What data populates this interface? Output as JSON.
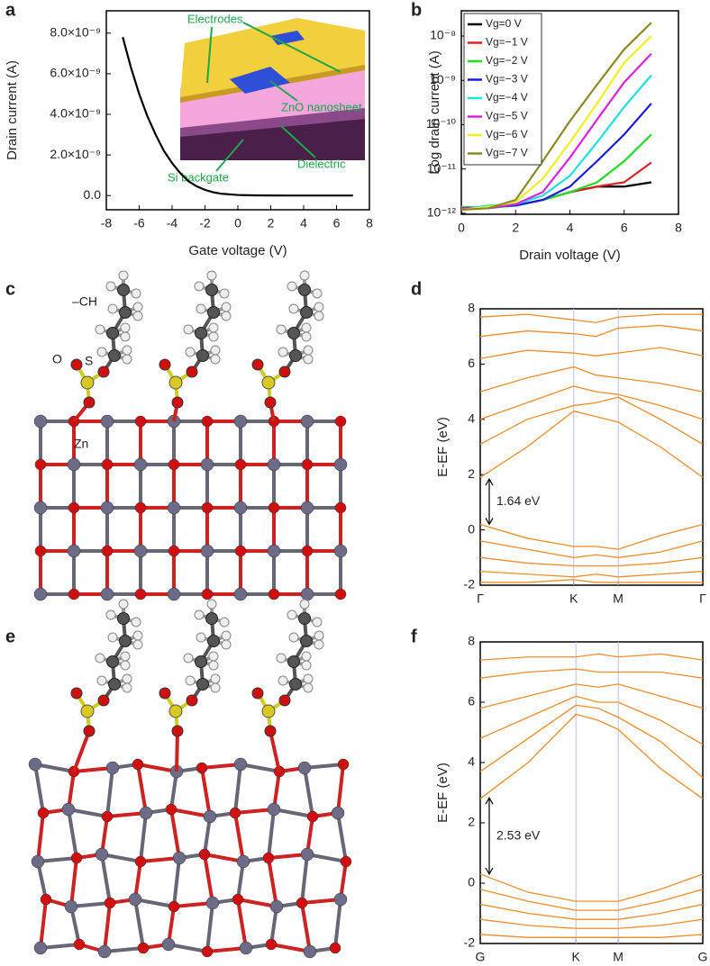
{
  "panels": [
    "a",
    "b",
    "c",
    "d",
    "e",
    "f"
  ],
  "structure_c": {
    "labels": [
      "–CH",
      "O",
      "S",
      "Zn"
    ]
  },
  "chart_data": [
    {
      "type": "line",
      "xlabel": "Gate voltage (V)",
      "ylabel": "Drain current (A)",
      "x": [
        -7,
        -6.5,
        -6,
        -5.5,
        -5,
        -4.5,
        -4,
        -3.5,
        -3,
        -2.5,
        -2,
        -1.5,
        -1,
        0,
        1,
        2,
        3,
        4,
        5,
        6,
        7
      ],
      "values": [
        7.8e-09,
        6.3e-09,
        5e-09,
        3.9e-09,
        3e-09,
        2.2e-09,
        1.6e-09,
        1.1e-09,
        7e-10,
        4.5e-10,
        2.8e-10,
        1.6e-10,
        9e-11,
        3e-11,
        1e-11,
        5e-12,
        0,
        0,
        0,
        0,
        0
      ],
      "color": "#000000",
      "xlim": [
        -8,
        8
      ],
      "xticks": [
        -8,
        -6,
        -4,
        -2,
        0,
        2,
        4,
        6,
        8
      ],
      "ylim": [
        -7e-10,
        9.1e-09
      ],
      "yticks": [
        {
          "value": 0,
          "label": "0.0"
        },
        {
          "value": 2e-09,
          "label": "2.0×10⁻⁹"
        },
        {
          "value": 4e-09,
          "label": "4.0×10⁻⁹"
        },
        {
          "value": 6e-09,
          "label": "6.0×10⁻⁹"
        },
        {
          "value": 8e-09,
          "label": "8.0×10⁻⁹"
        }
      ],
      "annotations": [
        "Electrodes",
        "ZnO nanosheet",
        "Si backgate",
        "Dielectric"
      ]
    },
    {
      "type": "line",
      "xlabel": "Drain voltage (V)",
      "ylabel": "Log drain current (A)",
      "ylog": true,
      "legend": "upper-left",
      "x": [
        0,
        1,
        2,
        3,
        4,
        5,
        6,
        7
      ],
      "series": [
        {
          "name": "Vg=0 V",
          "color": "#000000",
          "values": [
            1.3e-12,
            1.4e-12,
            1.5e-12,
            2e-12,
            3e-12,
            4e-12,
            4e-12,
            5e-12
          ]
        },
        {
          "name": "Vg=−1 V",
          "color": "#e02020",
          "values": [
            1.3e-12,
            1.4e-12,
            1.5e-12,
            2e-12,
            3e-12,
            4e-12,
            5e-12,
            1.4e-11
          ]
        },
        {
          "name": "Vg=−2 V",
          "color": "#22dd22",
          "values": [
            1.4e-12,
            1.3e-12,
            1.5e-12,
            2e-12,
            3e-12,
            5e-12,
            1.5e-11,
            6e-11
          ]
        },
        {
          "name": "Vg=−3 V",
          "color": "#1a1ae0",
          "values": [
            1.3e-12,
            1.4e-12,
            1.5e-12,
            2e-12,
            4e-12,
            1.5e-11,
            6e-11,
            3e-10
          ]
        },
        {
          "name": "Vg=−4 V",
          "color": "#20e0e0",
          "values": [
            1.2e-12,
            1.5e-12,
            1.6e-12,
            2.5e-12,
            7e-12,
            4e-11,
            2.5e-10,
            1.3e-09
          ]
        },
        {
          "name": "Vg=−5 V",
          "color": "#e020e0",
          "values": [
            1.3e-12,
            1.3e-12,
            1.6e-12,
            3e-12,
            1.8e-11,
            1.3e-10,
            9e-10,
            4e-09
          ]
        },
        {
          "name": "Vg=−6 V",
          "color": "#f0f020",
          "values": [
            1.2e-12,
            1.4e-12,
            1.8e-12,
            6e-12,
            4e-11,
            3e-10,
            2.5e-09,
            1e-08
          ]
        },
        {
          "name": "Vg=−7 V",
          "color": "#8a8a20",
          "values": [
            1.2e-12,
            1.3e-12,
            2e-12,
            1.5e-11,
            1.2e-10,
            8e-10,
            5e-09,
            2e-08
          ]
        }
      ],
      "xlim": [
        0,
        8
      ],
      "xticks": [
        0,
        2,
        4,
        6,
        8
      ],
      "ylim": [
        9.5e-13,
        3.7e-08
      ],
      "yticks": [
        {
          "value": 1e-12,
          "label": "10⁻¹²"
        },
        {
          "value": 1e-11,
          "label": "10⁻¹¹"
        },
        {
          "value": 1e-10,
          "label": "10⁻¹⁰"
        },
        {
          "value": 1e-09,
          "label": "10⁻⁹"
        },
        {
          "value": 1e-08,
          "label": "10⁻⁸"
        }
      ]
    },
    {
      "type": "line",
      "ylabel": "E-EF (eV)",
      "color": "#f28c28",
      "xgrid": true,
      "x": [
        0,
        0.21,
        0.42,
        0.52,
        0.62,
        0.81,
        1
      ],
      "series": [
        {
          "values": [
            1.9,
            3.0,
            4.3,
            4.1,
            3.9,
            3.0,
            1.9
          ]
        },
        {
          "values": [
            3.1,
            4.0,
            4.5,
            4.6,
            4.8,
            4.0,
            3.1
          ]
        },
        {
          "values": [
            4.0,
            4.6,
            5.2,
            5.0,
            4.9,
            4.5,
            4.0
          ]
        },
        {
          "values": [
            5.0,
            5.5,
            5.9,
            5.6,
            5.5,
            5.3,
            5.0
          ]
        },
        {
          "values": [
            6.2,
            6.5,
            6.4,
            6.3,
            6.4,
            6.6,
            6.3
          ]
        },
        {
          "values": [
            7.0,
            7.2,
            7.1,
            7.0,
            7.3,
            7.4,
            7.2
          ]
        },
        {
          "values": [
            7.7,
            7.8,
            7.6,
            7.5,
            7.7,
            7.8,
            7.8
          ]
        },
        {
          "values": [
            0.2,
            -0.3,
            -0.6,
            -0.6,
            -0.7,
            -0.2,
            0.2
          ]
        },
        {
          "values": [
            -0.4,
            -0.7,
            -1.0,
            -0.9,
            -1.0,
            -0.8,
            -0.4
          ]
        },
        {
          "values": [
            -1.0,
            -1.2,
            -1.3,
            -1.3,
            -1.3,
            -1.2,
            -1.0
          ]
        },
        {
          "values": [
            -1.5,
            -1.6,
            -1.7,
            -1.6,
            -1.7,
            -1.6,
            -1.5
          ]
        },
        {
          "values": [
            -1.9,
            -1.9,
            -1.8,
            -1.9,
            -1.9,
            -1.9,
            -1.9
          ]
        }
      ],
      "xlim": [
        0,
        1
      ],
      "xticks": [
        {
          "value": 0,
          "label": "Γ"
        },
        {
          "value": 0.42,
          "label": "K"
        },
        {
          "value": 0.62,
          "label": "M"
        },
        {
          "value": 1,
          "label": "Γ"
        }
      ],
      "ylim": [
        -2,
        8
      ],
      "yticks": [
        -2,
        0,
        2,
        4,
        6,
        8
      ],
      "gap": {
        "value": 1.64,
        "label": "1.64 eV"
      }
    },
    {
      "type": "line",
      "ylabel": "E-EF (eV)",
      "color": "#f28c28",
      "xgrid": true,
      "x": [
        0,
        0.215,
        0.43,
        0.53,
        0.62,
        0.81,
        1
      ],
      "series": [
        {
          "values": [
            2.8,
            4.0,
            5.6,
            5.4,
            5.1,
            3.8,
            2.8
          ]
        },
        {
          "values": [
            3.7,
            4.8,
            5.9,
            5.8,
            5.5,
            4.7,
            3.5
          ]
        },
        {
          "values": [
            4.8,
            5.5,
            6.2,
            6.0,
            6.0,
            5.4,
            4.6
          ]
        },
        {
          "values": [
            5.8,
            6.2,
            6.6,
            6.5,
            6.6,
            6.2,
            5.8
          ]
        },
        {
          "values": [
            6.8,
            7.0,
            7.1,
            7.0,
            7.0,
            7.0,
            6.8
          ]
        },
        {
          "values": [
            7.4,
            7.5,
            7.5,
            7.6,
            7.5,
            7.6,
            7.4
          ]
        },
        {
          "values": [
            0.3,
            -0.3,
            -0.6,
            -0.6,
            -0.6,
            -0.2,
            0.3
          ]
        },
        {
          "values": [
            -0.2,
            -0.6,
            -0.9,
            -0.9,
            -0.9,
            -0.6,
            -0.2
          ]
        },
        {
          "values": [
            -0.7,
            -1.0,
            -1.2,
            -1.2,
            -1.2,
            -1.0,
            -0.7
          ]
        },
        {
          "values": [
            -1.2,
            -1.4,
            -1.5,
            -1.5,
            -1.5,
            -1.4,
            -1.2
          ]
        },
        {
          "values": [
            -1.7,
            -1.8,
            -1.8,
            -1.8,
            -1.8,
            -1.8,
            -1.7
          ]
        }
      ],
      "xlim": [
        0,
        1
      ],
      "xticks": [
        {
          "value": 0,
          "label": "G"
        },
        {
          "value": 0.43,
          "label": "K"
        },
        {
          "value": 0.62,
          "label": "M"
        },
        {
          "value": 1,
          "label": "G"
        }
      ],
      "ylim": [
        -2,
        8
      ],
      "yticks": [
        -2,
        0,
        2,
        4,
        6,
        8
      ],
      "gap": {
        "value": 2.53,
        "label": "2.53 eV"
      }
    }
  ]
}
